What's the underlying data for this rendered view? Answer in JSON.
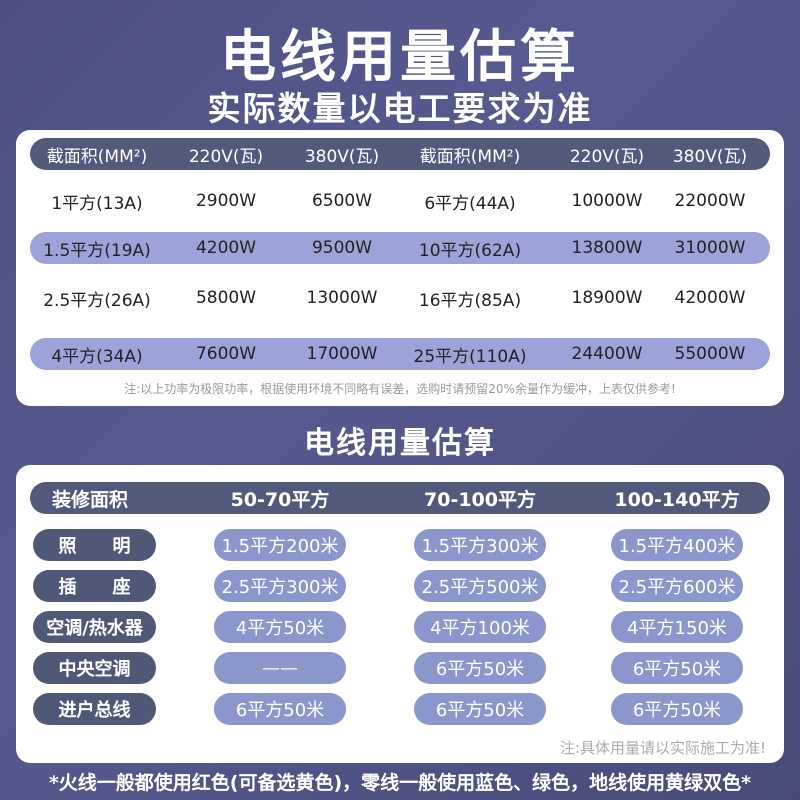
{
  "title": "电线用量估算",
  "subtitle": "实际数量以电工要求为准",
  "table1": {
    "headers": [
      "截面积(MM²)",
      "220V(瓦)",
      "380V(瓦)",
      "截面积(MM²)",
      "220V(瓦)",
      "380V(瓦)"
    ],
    "rows": [
      [
        "1平方(13A)",
        "2900W",
        "6500W",
        "6平方(44A)",
        "10000W",
        "22000W"
      ],
      [
        "1.5平方(19A)",
        "4200W",
        "9500W",
        "10平方(62A)",
        "13800W",
        "31000W"
      ],
      [
        "2.5平方(26A)",
        "5800W",
        "13000W",
        "16平方(85A)",
        "18900W",
        "42000W"
      ],
      [
        "4平方(34A)",
        "7600W",
        "17000W",
        "25平方(110A)",
        "24400W",
        "55000W"
      ]
    ],
    "note": "注:以上功率为极限功率，根据使用环境不同略有误差，选购时请预留20%余量作为缓冲，上表仅供参考!"
  },
  "section_title": "电线用量估算",
  "table2": {
    "headers": [
      "装修面积",
      "50-70平方",
      "70-100平方",
      "100-140平方"
    ],
    "rows": [
      [
        "照　　明",
        "1.5平方200米",
        "1.5平方300米",
        "1.5平方400米"
      ],
      [
        "插　　座",
        "2.5平方300米",
        "2.5平方500米",
        "2.5平方600米"
      ],
      [
        "空调/热水器",
        "4平方50米",
        "4平方100米",
        "4平方150米"
      ],
      [
        "中央空调",
        "——",
        "6平方50米",
        "6平方50米"
      ],
      [
        "进户总线",
        "6平方50米",
        "6平方50米",
        "6平方50米"
      ]
    ],
    "note": "注:具体用量请以实际施工为准!"
  },
  "footer": "*火线一般都使用红色(可备选黄色)，零线一般使用蓝色、绿色，地线使用黄绿双色*",
  "colors": {
    "background": "#4d5080",
    "header_row": "#525a7c",
    "stripe": "#9ca3d8",
    "value_pill": "#8a96cc"
  }
}
